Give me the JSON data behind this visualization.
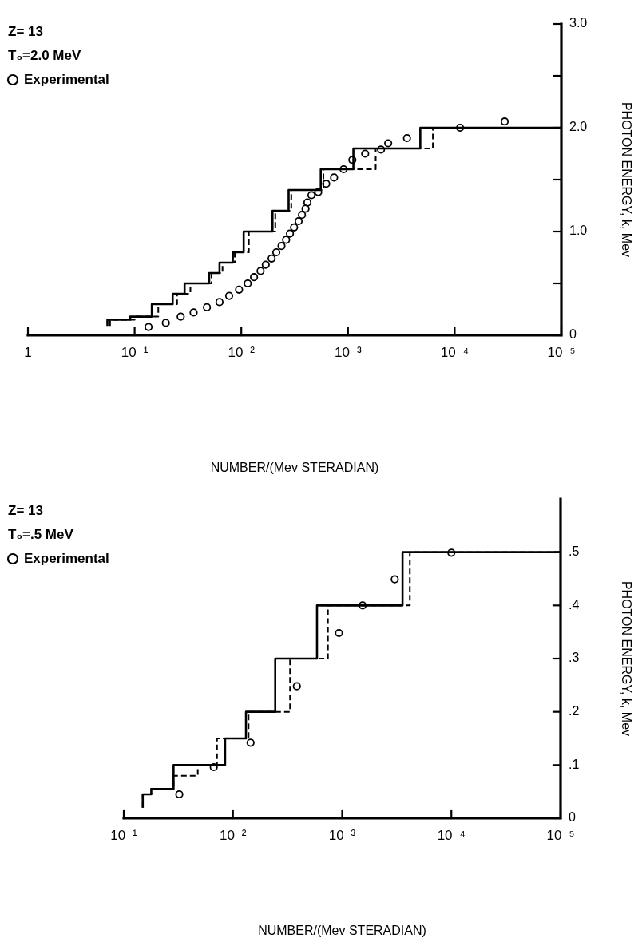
{
  "chart_data": [
    {
      "type": "line",
      "xlabel": "NUMBER/(Mev STERADIAN)",
      "ylabel": "PHOTON ENERGY, k, Mev",
      "annotations": [
        "Z= 13",
        "T₀=2.0 MeV"
      ],
      "log": "x",
      "grid": false,
      "legend": "top left",
      "xlim": [
        1,
        1e-05
      ],
      "xticks": [
        1,
        {
          "value": 0.1,
          "label": "10⁻¹"
        },
        {
          "value": 0.01,
          "label": "10⁻²"
        },
        {
          "value": 0.001,
          "label": "10⁻³"
        },
        {
          "value": 0.0001,
          "label": "10⁻⁴"
        },
        {
          "value": 1e-05,
          "label": "10⁻⁵"
        }
      ],
      "ylim": [
        0,
        3
      ],
      "yticks": [
        0,
        {
          "value": 0.5,
          "label": null
        },
        {
          "value": 1,
          "label": "1.0"
        },
        {
          "value": 1.5,
          "label": null
        },
        {
          "value": 2,
          "label": "2.0"
        },
        {
          "value": 2.5,
          "label": null
        },
        {
          "value": 3,
          "label": "3.0"
        }
      ],
      "series": [
        {
          "type": "line",
          "color": "#000000",
          "line_style": "solid",
          "x": [
            0.18,
            0.18,
            0.11,
            0.11,
            0.069,
            0.069,
            0.044,
            0.044,
            0.034,
            0.034,
            0.02,
            0.02,
            0.016,
            0.016,
            0.012,
            0.012,
            0.0095,
            0.0095,
            0.0051,
            0.0051,
            0.0036,
            0.0036,
            0.0018,
            0.0018,
            0.00089,
            0.00089,
            0.00021,
            0.00021,
            1e-05
          ],
          "values": [
            0.09,
            0.15,
            0.15,
            0.18,
            0.18,
            0.3,
            0.3,
            0.4,
            0.4,
            0.5,
            0.5,
            0.6,
            0.6,
            0.7,
            0.7,
            0.8,
            0.8,
            1.0,
            1.0,
            1.2,
            1.2,
            1.4,
            1.4,
            1.6,
            1.6,
            1.8,
            1.8,
            2.0,
            2.0
          ]
        },
        {
          "type": "line",
          "color": "#000000",
          "line_style": "dashed",
          "x": [
            0.17,
            0.17,
            0.1,
            0.1,
            0.06,
            0.06,
            0.04,
            0.04,
            0.03,
            0.03,
            0.019,
            0.019,
            0.015,
            0.015,
            0.0115,
            0.0115,
            0.0085,
            0.0085,
            0.0048,
            0.0048,
            0.0034,
            0.0034,
            0.0017,
            0.0017,
            0.00055,
            0.00055,
            0.00016,
            0.00016,
            1e-05
          ],
          "values": [
            0.09,
            0.15,
            0.15,
            0.18,
            0.18,
            0.3,
            0.3,
            0.4,
            0.4,
            0.5,
            0.5,
            0.6,
            0.6,
            0.7,
            0.7,
            0.8,
            0.8,
            1.0,
            1.0,
            1.2,
            1.2,
            1.4,
            1.4,
            1.6,
            1.6,
            1.8,
            1.8,
            2.0,
            2.0
          ]
        },
        {
          "type": "scatter",
          "name": "Experimental",
          "color": "#000000",
          "marker": "circle",
          "x": [
            0.074,
            0.051,
            0.037,
            0.028,
            0.021,
            0.016,
            0.013,
            0.0105,
            0.0087,
            0.0076,
            0.0066,
            0.0059,
            0.0052,
            0.0047,
            0.0042,
            0.0038,
            0.0035,
            0.0032,
            0.0029,
            0.0027,
            0.0025,
            0.0024,
            0.0022,
            0.0019,
            0.0016,
            0.00135,
            0.0011,
            0.00091,
            0.00069,
            0.00049,
            0.00042,
            0.00028,
            8.9e-05,
            3.4e-05
          ],
          "values": [
            0.08,
            0.12,
            0.18,
            0.22,
            0.27,
            0.32,
            0.38,
            0.44,
            0.5,
            0.56,
            0.62,
            0.68,
            0.74,
            0.8,
            0.86,
            0.92,
            0.98,
            1.04,
            1.1,
            1.16,
            1.22,
            1.28,
            1.35,
            1.38,
            1.46,
            1.52,
            1.6,
            1.69,
            1.75,
            1.79,
            1.85,
            1.9,
            2.0,
            2.06
          ]
        }
      ]
    },
    {
      "type": "line",
      "xlabel": "NUMBER/(Mev STERADIAN)",
      "ylabel": "PHOTON ENERGY, k, Mev",
      "annotations": [
        "Z= 13",
        "T₀=.5 MeV"
      ],
      "log": "x",
      "grid": false,
      "legend": "top left",
      "xlim": [
        0.1,
        1e-05
      ],
      "xticks": [
        {
          "value": 0.1,
          "label": "10⁻¹"
        },
        {
          "value": 0.01,
          "label": "10⁻²"
        },
        {
          "value": 0.001,
          "label": "10⁻³"
        },
        {
          "value": 0.0001,
          "label": "10⁻⁴"
        },
        {
          "value": 1e-05,
          "label": "10⁻⁵"
        }
      ],
      "ylim": [
        0,
        0.6
      ],
      "yticks": [
        0,
        {
          "value": 0.1,
          "label": ".1"
        },
        {
          "value": 0.2,
          "label": ".2"
        },
        {
          "value": 0.3,
          "label": ".3"
        },
        {
          "value": 0.4,
          "label": ".4"
        },
        {
          "value": 0.5,
          "label": ".5"
        }
      ],
      "series": [
        {
          "type": "line",
          "color": "#000000",
          "line_style": "solid",
          "x": [
            0.067,
            0.067,
            0.056,
            0.056,
            0.035,
            0.035,
            0.0118,
            0.0118,
            0.0076,
            0.0076,
            0.0041,
            0.0041,
            0.0017,
            0.0017,
            0.00028,
            0.00028,
            1e-05
          ],
          "values": [
            0.02,
            0.045,
            0.045,
            0.055,
            0.055,
            0.1,
            0.1,
            0.15,
            0.15,
            0.2,
            0.2,
            0.3,
            0.3,
            0.4,
            0.4,
            0.5,
            0.5
          ]
        },
        {
          "type": "line",
          "color": "#000000",
          "line_style": "dashed",
          "x": [
            0.067,
            0.067,
            0.056,
            0.056,
            0.035,
            0.035,
            0.021,
            0.021,
            0.014,
            0.014,
            0.0072,
            0.0072,
            0.003,
            0.003,
            0.00135,
            0.00135,
            0.00024,
            0.00024,
            1e-05
          ],
          "values": [
            0.02,
            0.045,
            0.045,
            0.055,
            0.055,
            0.08,
            0.08,
            0.1,
            0.1,
            0.15,
            0.15,
            0.2,
            0.2,
            0.3,
            0.3,
            0.4,
            0.4,
            0.5,
            0.5
          ]
        },
        {
          "type": "scatter",
          "name": "Experimental",
          "color": "#000000",
          "marker": "circle",
          "x": [
            0.031,
            0.015,
            0.0069,
            0.0026,
            0.00107,
            0.00065,
            0.00033,
            0.0001
          ],
          "values": [
            0.045,
            0.096,
            0.142,
            0.248,
            0.348,
            0.4,
            0.449,
            0.499
          ]
        }
      ]
    }
  ]
}
